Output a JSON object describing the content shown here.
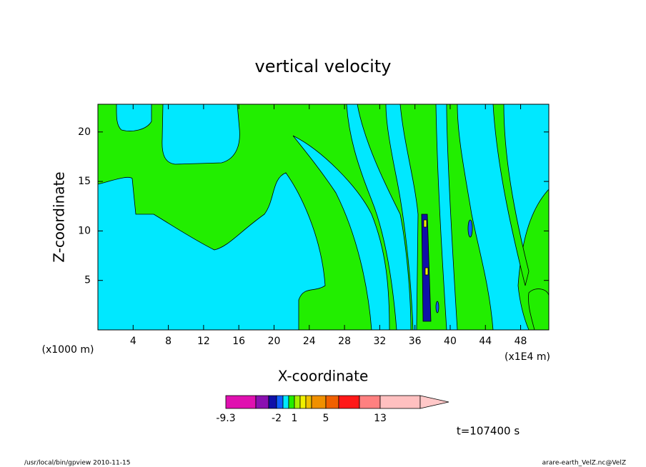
{
  "chart_data": {
    "type": "contour",
    "title": "vertical velocity",
    "xlabel": "X-coordinate",
    "ylabel": "Z-coordinate",
    "x_unit_left": "(x1000 m)",
    "x_unit_right": "(x1E4 m)",
    "xlim": [
      0,
      51.2
    ],
    "xticks": [
      4,
      8,
      12,
      16,
      20,
      24,
      28,
      32,
      36,
      40,
      44,
      48
    ],
    "ylim": [
      0,
      22.8
    ],
    "yticks": [
      5,
      10,
      15,
      20
    ],
    "colorbar": {
      "levels": [
        -9.3,
        null,
        null,
        -2,
        null,
        null,
        1,
        null,
        null,
        null,
        5,
        null,
        null,
        13,
        null
      ],
      "colors": [
        "#e010b0",
        "#8a10b0",
        "#1010a8",
        "#1060ff",
        "#00e8ff",
        "#22ee00",
        "#a8f000",
        "#f0f000",
        "#f0c000",
        "#f09000",
        "#f06000",
        "#ff1818",
        "#ff8080",
        "#ffc0c0",
        "#ffc8c8"
      ]
    },
    "time_label": "t=107400 s",
    "footer_left": "/usr/local/bin/gpview  2010-11-15",
    "footer_right": "arare-earth_VelZ.nc@VelZ"
  }
}
